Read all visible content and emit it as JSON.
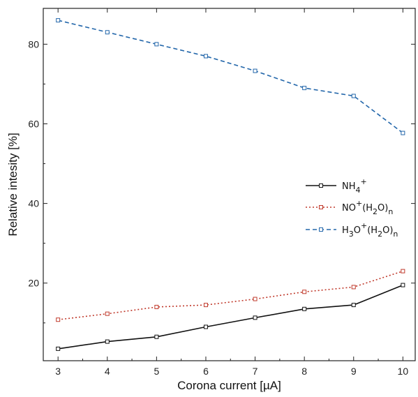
{
  "chart_data": {
    "type": "line",
    "xlabel": "Corona current [µA]",
    "ylabel": "Relative intesity [%]",
    "xlim": [
      2.7,
      10.25
    ],
    "ylim": [
      0.5,
      89
    ],
    "x": [
      3,
      4,
      5,
      6,
      7,
      8,
      9,
      10
    ],
    "xticks": [
      "3",
      "4",
      "5",
      "6",
      "7",
      "8",
      "9",
      "10"
    ],
    "yticks": [
      20,
      40,
      60,
      80
    ],
    "legend_position": "right",
    "grid": false,
    "series": [
      {
        "name": "NH4+",
        "legend": {
          "parts": [
            {
              "t": "NH"
            },
            {
              "t": "4",
              "sub": true
            },
            {
              "t": "+",
              "sup": true
            }
          ]
        },
        "color": "#111111",
        "dash": "solid",
        "values": [
          3.5,
          5.3,
          6.5,
          9.0,
          11.3,
          13.5,
          14.5,
          19.5
        ]
      },
      {
        "name": "NO+(H2O)n",
        "legend": {
          "parts": [
            {
              "t": "NO"
            },
            {
              "t": "+",
              "sup": true
            },
            {
              "t": "(H"
            },
            {
              "t": "2",
              "sub": true
            },
            {
              "t": "O)"
            },
            {
              "t": "n",
              "sub": true
            }
          ]
        },
        "color": "#c0392b",
        "dash": "dotted",
        "values": [
          10.8,
          12.3,
          14.0,
          14.5,
          16.0,
          17.8,
          19.0,
          23.0
        ]
      },
      {
        "name": "H3O+(H2O)n",
        "legend": {
          "parts": [
            {
              "t": "H"
            },
            {
              "t": "3",
              "sub": true
            },
            {
              "t": "O"
            },
            {
              "t": "+",
              "sup": true
            },
            {
              "t": "(H"
            },
            {
              "t": "2",
              "sub": true
            },
            {
              "t": "O)"
            },
            {
              "t": "n",
              "sub": true
            }
          ]
        },
        "color": "#2266aa",
        "dash": "dashed",
        "values": [
          86.0,
          83.0,
          80.0,
          77.0,
          73.3,
          69.0,
          67.0,
          57.7
        ]
      }
    ]
  }
}
